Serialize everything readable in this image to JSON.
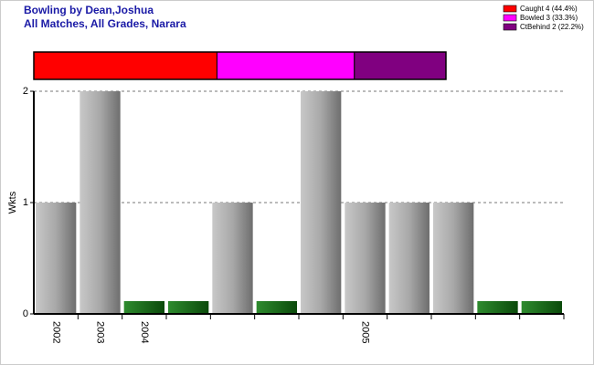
{
  "chart_data": {
    "type": "bar",
    "title": "Bowling by Dean,Joshua",
    "subtitle": "All Matches, All Grades, Narara",
    "y_label": "Wkts",
    "categories": [
      "2002",
      "2003",
      "2004",
      null,
      null,
      null,
      null,
      "2005",
      null,
      null,
      null,
      null
    ],
    "values": [
      1,
      2,
      0,
      0,
      1,
      0,
      2,
      1,
      1,
      1,
      0,
      0
    ],
    "ylim": [
      0,
      2
    ],
    "yticks": [
      0,
      1,
      2
    ],
    "grid": true,
    "summary": [
      {
        "label": "Caught 4 (44.4%)",
        "value": 4,
        "color": "#ff0000"
      },
      {
        "label": "Bowled 3 (33.3%)",
        "value": 3,
        "color": "#ff00ff"
      },
      {
        "label": "CtBehind 2 (22.2%)",
        "value": 2,
        "color": "#800080"
      }
    ]
  }
}
